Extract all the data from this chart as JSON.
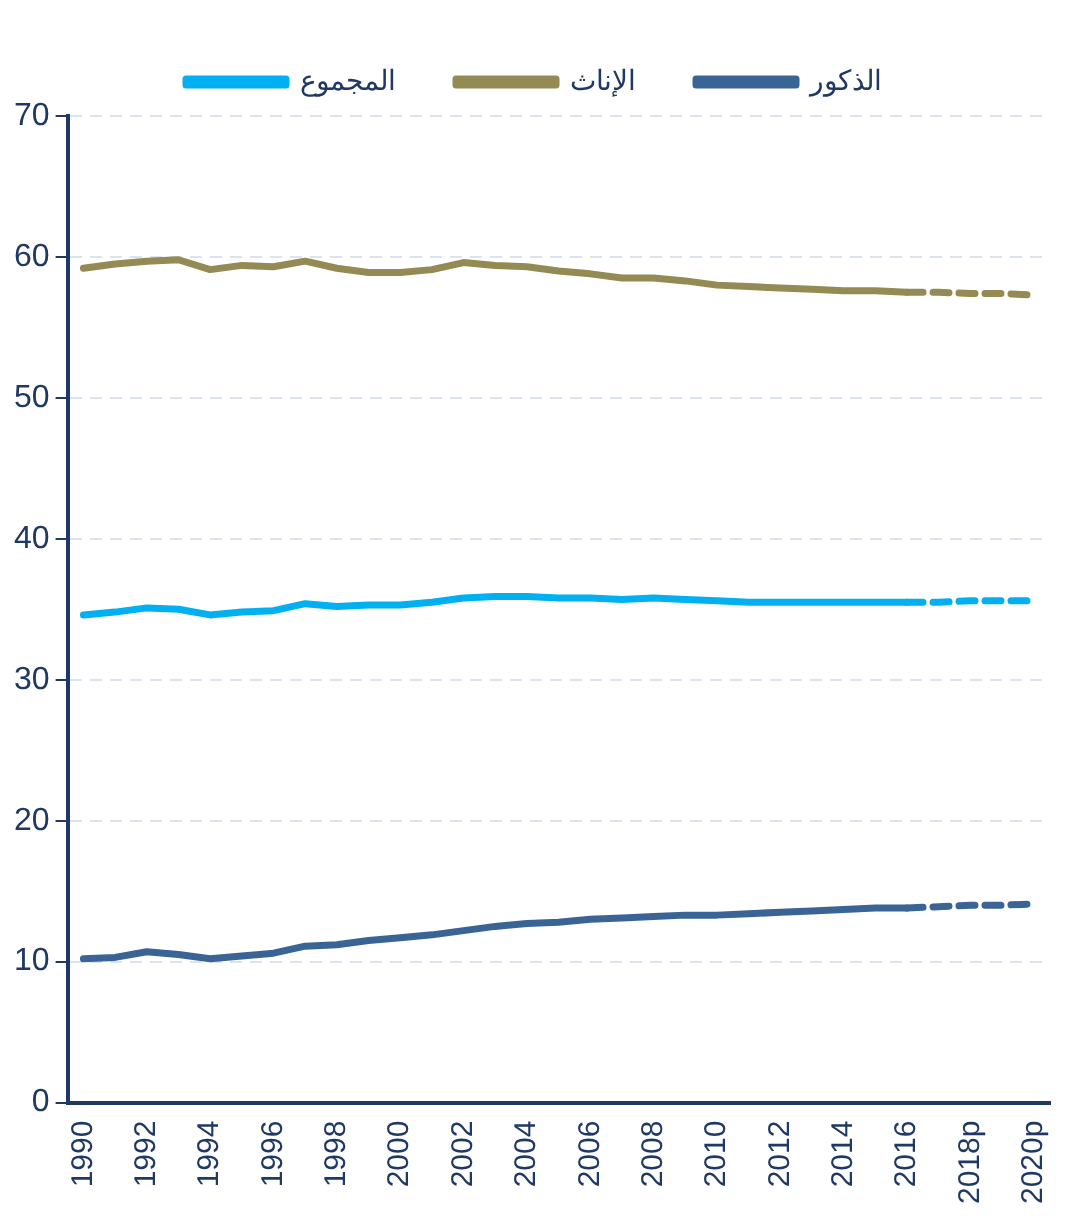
{
  "chart_data": {
    "type": "line",
    "categories": [
      "1990",
      null,
      "1992",
      null,
      "1994",
      null,
      "1996",
      null,
      "1998",
      null,
      "2000",
      null,
      "2002",
      null,
      "2004",
      null,
      "2006",
      null,
      "2008",
      null,
      "2010",
      null,
      "2012",
      null,
      "2014",
      null,
      "2016",
      null,
      "2018p",
      null,
      "2020p"
    ],
    "series": [
      {
        "name": "المجموع",
        "color": "#00b0f0",
        "line_style": "solid",
        "values": [
          34.6,
          34.8,
          35.1,
          35.0,
          34.6,
          34.8,
          34.9,
          35.4,
          35.2,
          35.3,
          35.3,
          35.5,
          35.8,
          35.9,
          35.9,
          35.8,
          35.8,
          35.7,
          35.8,
          35.7,
          35.6,
          35.5,
          35.5,
          35.5,
          35.5,
          35.5,
          35.5,
          null,
          null,
          null,
          null
        ]
      },
      {
        "name": "الإناث",
        "color": "#948a54",
        "line_style": "solid",
        "values": [
          59.2,
          59.5,
          59.7,
          59.8,
          59.1,
          59.4,
          59.3,
          59.7,
          59.2,
          58.9,
          58.9,
          59.1,
          59.6,
          59.4,
          59.3,
          59.0,
          58.8,
          58.5,
          58.5,
          58.3,
          58.0,
          57.9,
          57.8,
          57.7,
          57.6,
          57.6,
          57.5,
          null,
          null,
          null,
          null
        ]
      },
      {
        "name": "الذكور",
        "color": "#3a6496",
        "line_style": "solid",
        "values": [
          10.2,
          10.3,
          10.7,
          10.5,
          10.2,
          10.4,
          10.6,
          11.1,
          11.2,
          11.5,
          11.7,
          11.9,
          12.2,
          12.5,
          12.7,
          12.8,
          13.0,
          13.1,
          13.2,
          13.3,
          13.3,
          13.4,
          13.5,
          13.6,
          13.7,
          13.8,
          13.8,
          null,
          null,
          null,
          null
        ]
      },
      {
        "color": "#00b0f0",
        "line_style": "dashed",
        "values": [
          null,
          null,
          null,
          null,
          null,
          null,
          null,
          null,
          null,
          null,
          null,
          null,
          null,
          null,
          null,
          null,
          null,
          null,
          null,
          null,
          null,
          null,
          null,
          null,
          null,
          null,
          35.5,
          35.5,
          35.6,
          35.6,
          35.6
        ]
      },
      {
        "color": "#948a54",
        "line_style": "dashed",
        "values": [
          null,
          null,
          null,
          null,
          null,
          null,
          null,
          null,
          null,
          null,
          null,
          null,
          null,
          null,
          null,
          null,
          null,
          null,
          null,
          null,
          null,
          null,
          null,
          null,
          null,
          null,
          57.5,
          57.5,
          57.4,
          57.4,
          57.3
        ]
      },
      {
        "color": "#3a6496",
        "line_style": "dashed",
        "values": [
          null,
          null,
          null,
          null,
          null,
          null,
          null,
          null,
          null,
          null,
          null,
          null,
          null,
          null,
          null,
          null,
          null,
          null,
          null,
          null,
          null,
          null,
          null,
          null,
          null,
          null,
          13.8,
          13.9,
          14.0,
          14.0,
          14.1
        ]
      }
    ],
    "ylim": [
      0,
      70
    ],
    "yticks": [
      0,
      10,
      20,
      30,
      40,
      50,
      60,
      70
    ],
    "grid": "y",
    "legend": "top",
    "marker": "none"
  }
}
